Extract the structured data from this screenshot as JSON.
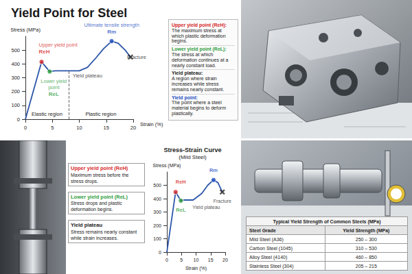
{
  "chart_data": [
    {
      "type": "line",
      "title": "Yield Point for Steel",
      "xlabel": "Strain (%)",
      "ylabel": "Stress (MPa)",
      "x": [
        0,
        3,
        4.5,
        5.5,
        8,
        10,
        11.5,
        13,
        14.5,
        16,
        17.2,
        18.5,
        19.5
      ],
      "values": [
        0,
        415,
        345,
        350,
        350,
        350,
        375,
        440,
        510,
        565,
        550,
        500,
        450
      ],
      "color": "#2b55a8",
      "xlim": [
        0,
        20
      ],
      "ylim": [
        0,
        600
      ],
      "xticks": [
        0,
        5,
        10,
        15,
        20
      ],
      "yticks": [
        0,
        100,
        200,
        300,
        400,
        500
      ],
      "grid": false,
      "key_points": [
        {
          "name": "Upper yield point",
          "label": "ReH",
          "x": 3,
          "y": 415,
          "color": "#d62728",
          "marker": "circle"
        },
        {
          "name": "Lower yield point",
          "label": "ReL",
          "x": 4.5,
          "y": 345,
          "color": "#2e9e3e",
          "marker": "circle"
        },
        {
          "name": "Ultimate tensile strength",
          "label": "Rm",
          "x": 16,
          "y": 565,
          "color": "#1f4fbf",
          "marker": "circle"
        },
        {
          "name": "Fracture",
          "x": 19.5,
          "y": 450,
          "color": "#222222",
          "marker": "x"
        }
      ],
      "annotations": [
        {
          "text": "Yield plateau",
          "x": 11.5,
          "y": 350
        }
      ],
      "regions": [
        {
          "name": "Elastic region",
          "from": 0,
          "to": 8
        },
        {
          "name": "Plastic region",
          "from": 8,
          "to": 20
        }
      ]
    },
    {
      "type": "line",
      "title": "Stress-Strain Curve",
      "subtitle": "(Mild Steel)",
      "xlabel": "Strain (%)",
      "ylabel": "Stress (MPa)",
      "x": [
        0,
        3,
        4.8,
        6,
        9,
        12,
        14,
        16,
        17.5,
        19
      ],
      "values": [
        0,
        450,
        385,
        390,
        390,
        440,
        500,
        540,
        520,
        450
      ],
      "color": "#2b55a8",
      "xlim": [
        0,
        20
      ],
      "ylim": [
        0,
        600
      ],
      "xticks": [
        0,
        5,
        10,
        15,
        20
      ],
      "yticks": [
        0,
        100,
        200,
        300,
        400,
        500
      ],
      "grid": false,
      "key_points": [
        {
          "label": "ReH",
          "x": 3,
          "y": 450,
          "color": "#d62728",
          "marker": "circle"
        },
        {
          "label": "ReL",
          "x": 4.8,
          "y": 385,
          "color": "#2e9e3e",
          "marker": "circle"
        },
        {
          "label": "Rm",
          "x": 16,
          "y": 540,
          "color": "#1f4fbf",
          "marker": "circle"
        },
        {
          "name": "Fracture",
          "x": 19,
          "y": 450,
          "color": "#222222",
          "marker": "x"
        }
      ],
      "annotations": [
        {
          "text": "Yield plateau",
          "x": 13.5,
          "y": 370
        }
      ]
    }
  ],
  "top_left_notes": [
    {
      "heading": "Upper yield point (ReH):",
      "text": "The maximum stress at which plastic deformation begins.",
      "color": "#d62728"
    },
    {
      "heading": "Lower yield point (ReL):",
      "text": "The stress at which deformation continues at a nearly constant load.",
      "color": "#2e9e3e"
    },
    {
      "heading": "Yield plateau:",
      "text": "A region where strain increases while stress remains nearly constant.",
      "color": "#222222"
    },
    {
      "heading": "Yield point:",
      "text": "The point where a steel material begins to deform plastically.",
      "color": "#1f4fbf"
    }
  ],
  "bottom_left_notes": [
    {
      "heading": "Upper yield point (ReH)",
      "text": "Maximum stress before the stress drops.",
      "color": "#d62728"
    },
    {
      "heading": "Lower yield point (ReL)",
      "text": "Stress drops and plastic deformation begins.",
      "color": "#2e9e3e"
    },
    {
      "heading": "Yield plateau",
      "text": "Stress remains nearly constant while strain increases.",
      "color": "#222222"
    }
  ],
  "bottom_right_table": {
    "title": "Typical Yield Strength of Common Steels (MPa)",
    "header": [
      "Steel Grade",
      "Yield Strength (MPa)"
    ],
    "rows": [
      [
        "Mild Steel (A36)",
        "250 – 300"
      ],
      [
        "Carbon Steel (1045)",
        "310 – 530"
      ],
      [
        "Alloy Steel (4140)",
        "460 – 850"
      ],
      [
        "Stainless Steel (304)",
        "205 – 215"
      ]
    ]
  }
}
